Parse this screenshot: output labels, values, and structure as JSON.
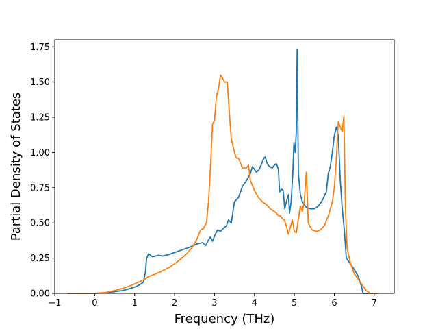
{
  "chart_data": {
    "type": "line",
    "title": "",
    "xlabel": "Frequency (THz)",
    "ylabel": "Partial Density of States",
    "xlim": [
      -1.0,
      7.5
    ],
    "ylim": [
      0.0,
      1.8
    ],
    "xticks": [
      -1,
      0,
      1,
      2,
      3,
      4,
      5,
      6,
      7
    ],
    "xtick_labels": [
      "−1",
      "0",
      "1",
      "2",
      "3",
      "4",
      "5",
      "6",
      "7"
    ],
    "yticks": [
      0.0,
      0.25,
      0.5,
      0.75,
      1.0,
      1.25,
      1.5,
      1.75
    ],
    "ytick_labels": [
      "0.00",
      "0.25",
      "0.50",
      "0.75",
      "1.00",
      "1.25",
      "1.50",
      "1.75"
    ],
    "grid": false,
    "legend": null,
    "series": [
      {
        "color": "#1f77b4",
        "points": [
          [
            -0.68,
            0.0
          ],
          [
            0.0,
            0.0
          ],
          [
            0.3,
            0.005
          ],
          [
            0.5,
            0.012
          ],
          [
            0.7,
            0.02
          ],
          [
            0.9,
            0.035
          ],
          [
            1.05,
            0.05
          ],
          [
            1.15,
            0.065
          ],
          [
            1.22,
            0.08
          ],
          [
            1.27,
            0.15
          ],
          [
            1.3,
            0.25
          ],
          [
            1.35,
            0.28
          ],
          [
            1.45,
            0.26
          ],
          [
            1.6,
            0.27
          ],
          [
            1.7,
            0.265
          ],
          [
            1.85,
            0.275
          ],
          [
            2.0,
            0.29
          ],
          [
            2.2,
            0.31
          ],
          [
            2.4,
            0.33
          ],
          [
            2.55,
            0.35
          ],
          [
            2.7,
            0.36
          ],
          [
            2.78,
            0.34
          ],
          [
            2.85,
            0.38
          ],
          [
            2.9,
            0.4
          ],
          [
            2.95,
            0.37
          ],
          [
            3.02,
            0.42
          ],
          [
            3.08,
            0.45
          ],
          [
            3.15,
            0.44
          ],
          [
            3.22,
            0.46
          ],
          [
            3.3,
            0.48
          ],
          [
            3.35,
            0.52
          ],
          [
            3.42,
            0.5
          ],
          [
            3.5,
            0.65
          ],
          [
            3.6,
            0.68
          ],
          [
            3.7,
            0.76
          ],
          [
            3.8,
            0.8
          ],
          [
            3.9,
            0.85
          ],
          [
            3.95,
            0.9
          ],
          [
            4.0,
            0.88
          ],
          [
            4.05,
            0.86
          ],
          [
            4.12,
            0.88
          ],
          [
            4.18,
            0.92
          ],
          [
            4.22,
            0.95
          ],
          [
            4.27,
            0.97
          ],
          [
            4.32,
            0.92
          ],
          [
            4.38,
            0.9
          ],
          [
            4.45,
            0.89
          ],
          [
            4.5,
            0.91
          ],
          [
            4.55,
            0.92
          ],
          [
            4.6,
            0.88
          ],
          [
            4.63,
            0.72
          ],
          [
            4.68,
            0.74
          ],
          [
            4.72,
            0.73
          ],
          [
            4.76,
            0.6
          ],
          [
            4.8,
            0.65
          ],
          [
            4.85,
            0.7
          ],
          [
            4.88,
            0.57
          ],
          [
            4.92,
            0.65
          ],
          [
            4.96,
            0.85
          ],
          [
            4.99,
            1.07
          ],
          [
            5.02,
            1.0
          ],
          [
            5.05,
            1.15
          ],
          [
            5.07,
            1.73
          ],
          [
            5.1,
            0.85
          ],
          [
            5.15,
            0.7
          ],
          [
            5.2,
            0.65
          ],
          [
            5.3,
            0.61
          ],
          [
            5.4,
            0.6
          ],
          [
            5.5,
            0.6
          ],
          [
            5.6,
            0.62
          ],
          [
            5.7,
            0.66
          ],
          [
            5.8,
            0.72
          ],
          [
            5.85,
            0.85
          ],
          [
            5.9,
            0.9
          ],
          [
            5.95,
            1.0
          ],
          [
            6.0,
            1.12
          ],
          [
            6.05,
            1.18
          ],
          [
            6.1,
            1.12
          ],
          [
            6.15,
            0.8
          ],
          [
            6.2,
            0.6
          ],
          [
            6.25,
            0.45
          ],
          [
            6.3,
            0.25
          ],
          [
            6.4,
            0.21
          ],
          [
            6.5,
            0.17
          ],
          [
            6.6,
            0.12
          ],
          [
            6.68,
            0.05
          ],
          [
            6.72,
            0.0
          ],
          [
            7.05,
            0.0
          ]
        ]
      },
      {
        "color": "#ff7f0e",
        "points": [
          [
            -0.68,
            0.0
          ],
          [
            0.0,
            0.0
          ],
          [
            0.3,
            0.008
          ],
          [
            0.5,
            0.02
          ],
          [
            0.7,
            0.035
          ],
          [
            0.9,
            0.055
          ],
          [
            1.1,
            0.08
          ],
          [
            1.25,
            0.1
          ],
          [
            1.35,
            0.12
          ],
          [
            1.5,
            0.135
          ],
          [
            1.7,
            0.16
          ],
          [
            1.9,
            0.19
          ],
          [
            2.1,
            0.23
          ],
          [
            2.3,
            0.28
          ],
          [
            2.45,
            0.33
          ],
          [
            2.55,
            0.38
          ],
          [
            2.65,
            0.45
          ],
          [
            2.72,
            0.46
          ],
          [
            2.8,
            0.5
          ],
          [
            2.85,
            0.65
          ],
          [
            2.9,
            0.9
          ],
          [
            2.95,
            1.2
          ],
          [
            3.0,
            1.23
          ],
          [
            3.05,
            1.4
          ],
          [
            3.1,
            1.45
          ],
          [
            3.15,
            1.55
          ],
          [
            3.2,
            1.53
          ],
          [
            3.25,
            1.5
          ],
          [
            3.32,
            1.5
          ],
          [
            3.38,
            1.25
          ],
          [
            3.42,
            1.1
          ],
          [
            3.5,
            1.0
          ],
          [
            3.55,
            0.96
          ],
          [
            3.6,
            0.96
          ],
          [
            3.7,
            0.89
          ],
          [
            3.8,
            0.89
          ],
          [
            3.85,
            0.91
          ],
          [
            3.9,
            0.8
          ],
          [
            4.0,
            0.73
          ],
          [
            4.1,
            0.68
          ],
          [
            4.2,
            0.65
          ],
          [
            4.3,
            0.63
          ],
          [
            4.4,
            0.6
          ],
          [
            4.5,
            0.58
          ],
          [
            4.55,
            0.57
          ],
          [
            4.6,
            0.55
          ],
          [
            4.65,
            0.55
          ],
          [
            4.7,
            0.53
          ],
          [
            4.75,
            0.52
          ],
          [
            4.8,
            0.48
          ],
          [
            4.85,
            0.42
          ],
          [
            4.9,
            0.47
          ],
          [
            4.95,
            0.52
          ],
          [
            5.0,
            0.44
          ],
          [
            5.05,
            0.43
          ],
          [
            5.1,
            0.53
          ],
          [
            5.15,
            0.62
          ],
          [
            5.2,
            0.58
          ],
          [
            5.25,
            0.66
          ],
          [
            5.3,
            0.86
          ],
          [
            5.35,
            0.5
          ],
          [
            5.4,
            0.47
          ],
          [
            5.45,
            0.45
          ],
          [
            5.55,
            0.44
          ],
          [
            5.65,
            0.45
          ],
          [
            5.75,
            0.48
          ],
          [
            5.85,
            0.55
          ],
          [
            5.95,
            0.65
          ],
          [
            6.0,
            0.75
          ],
          [
            6.05,
            0.95
          ],
          [
            6.1,
            1.22
          ],
          [
            6.15,
            1.18
          ],
          [
            6.2,
            1.15
          ],
          [
            6.24,
            1.26
          ],
          [
            6.28,
            0.6
          ],
          [
            6.32,
            0.32
          ],
          [
            6.4,
            0.22
          ],
          [
            6.5,
            0.14
          ],
          [
            6.6,
            0.1
          ],
          [
            6.7,
            0.06
          ],
          [
            6.8,
            0.02
          ],
          [
            6.9,
            0.0
          ],
          [
            7.1,
            0.0
          ]
        ]
      }
    ]
  }
}
